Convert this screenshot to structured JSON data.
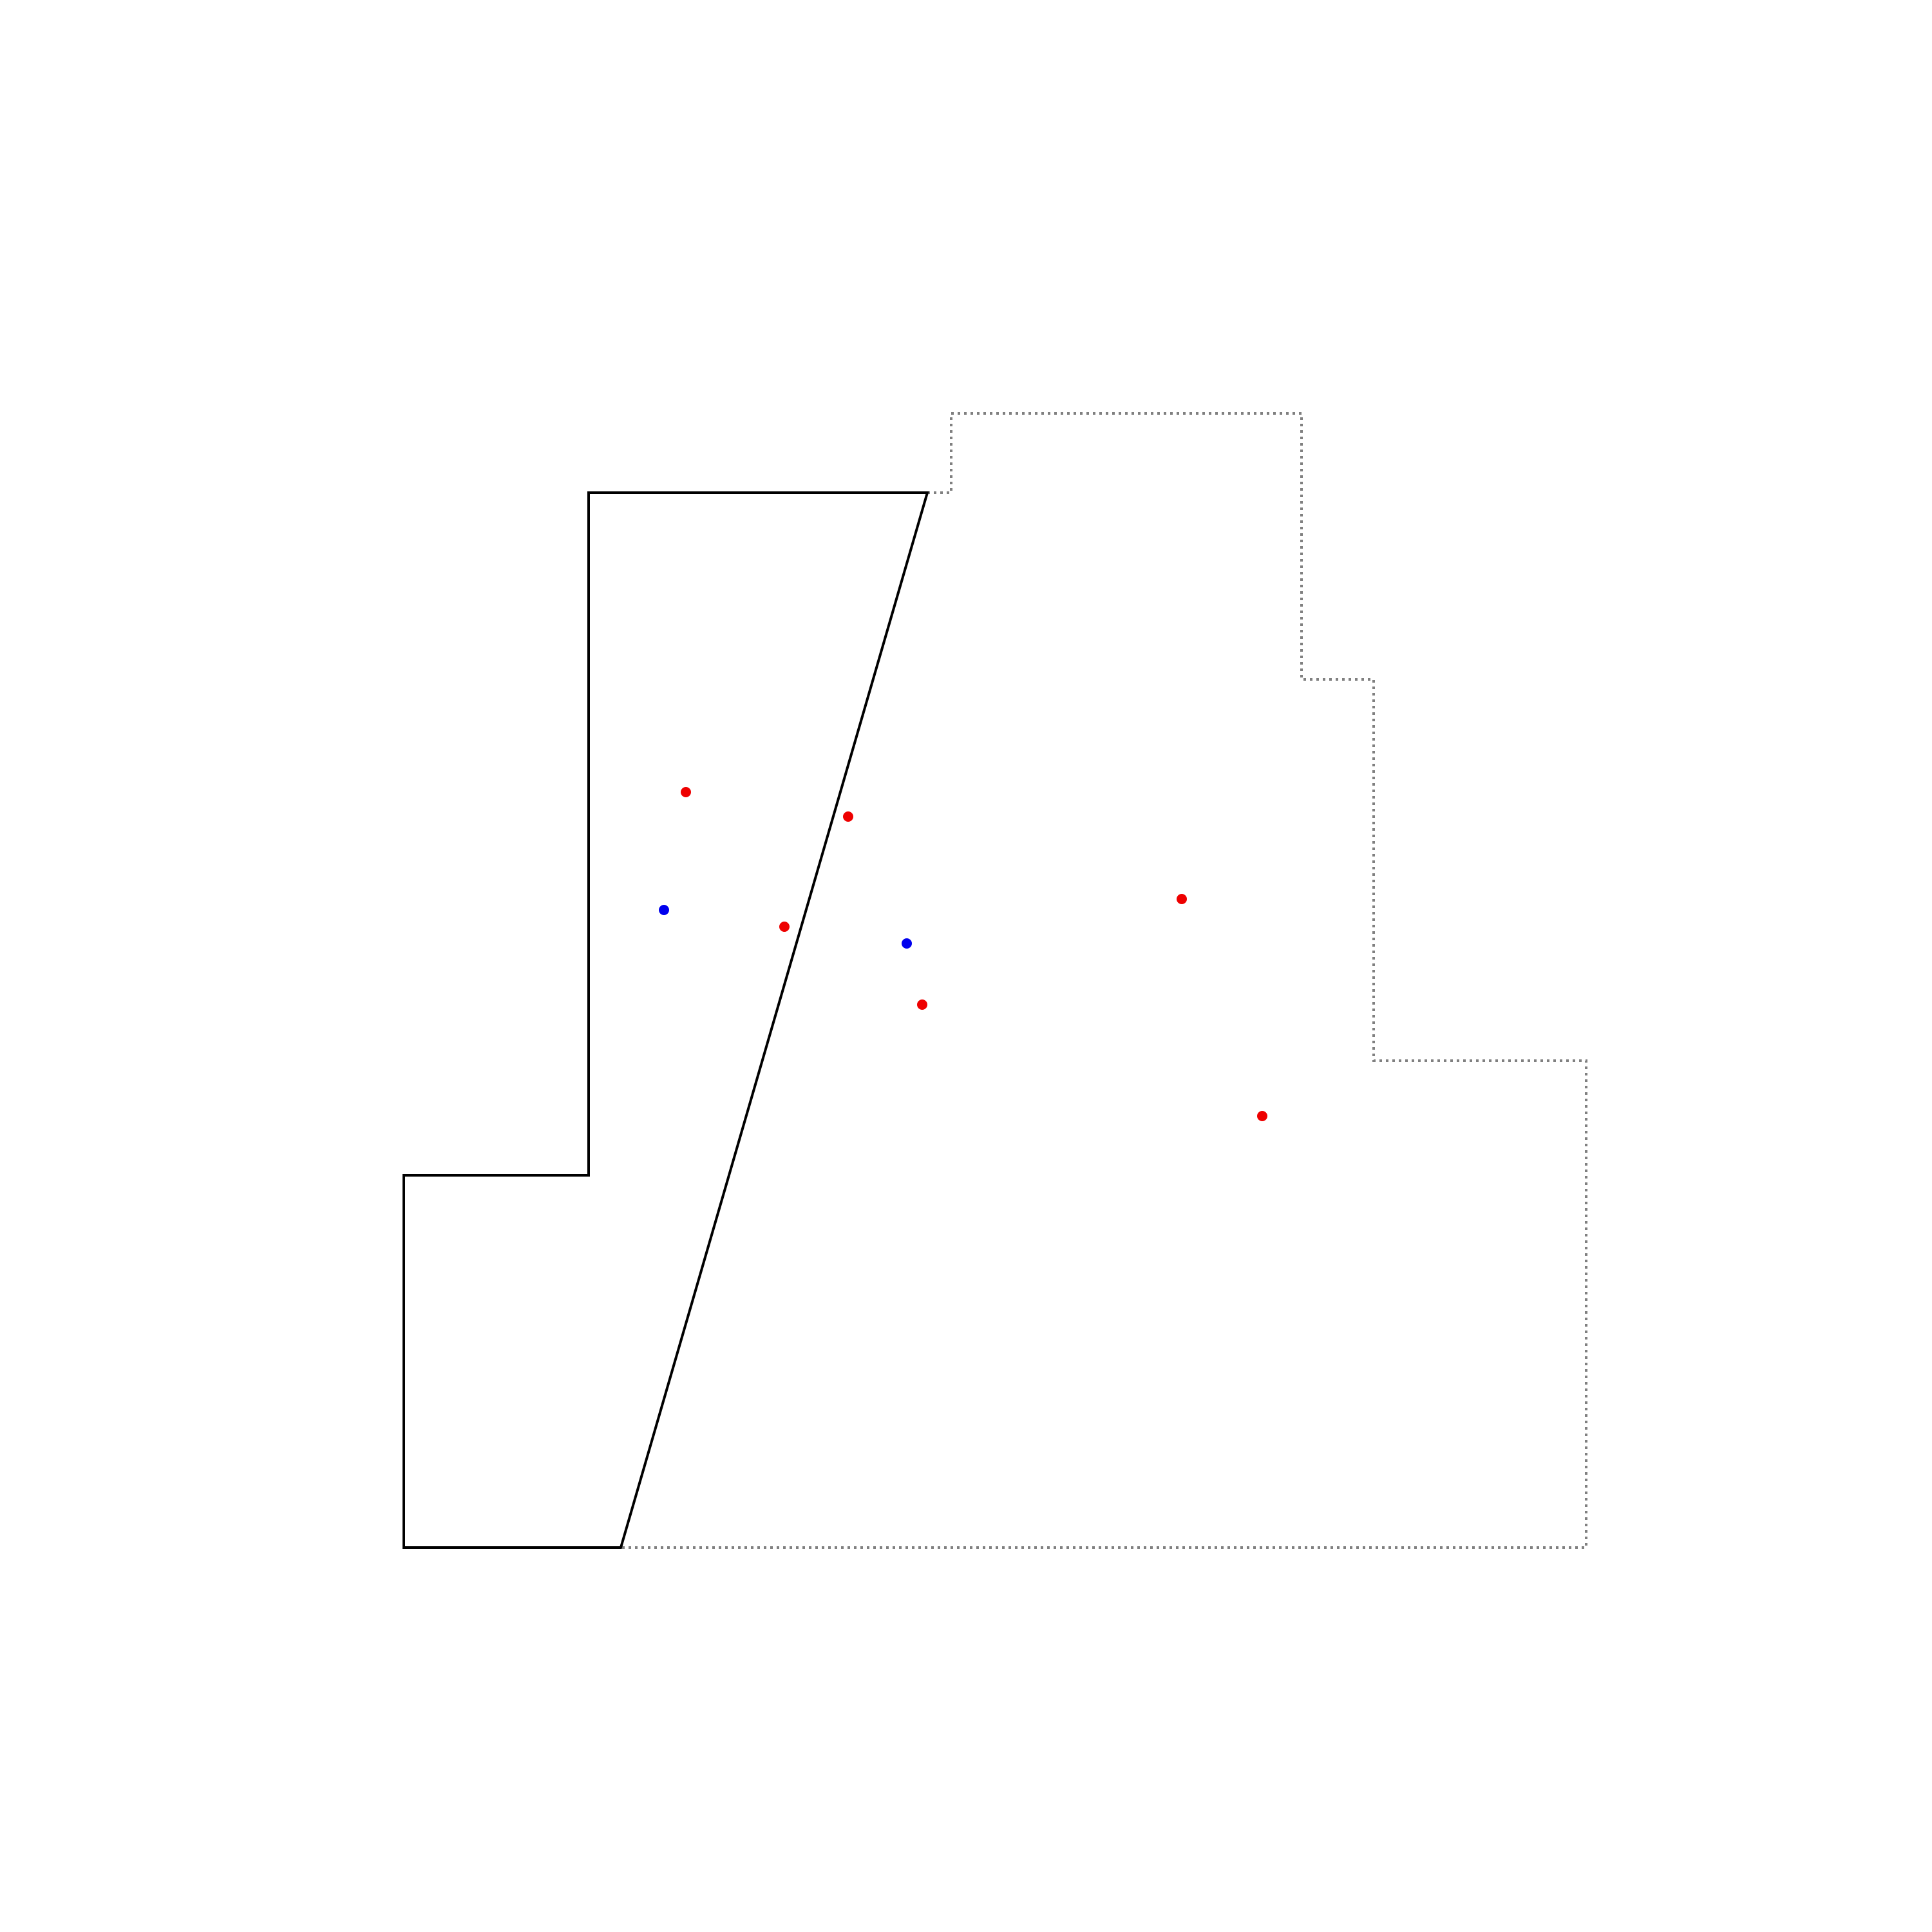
{
  "colors": {
    "background": "#ffffff",
    "solid_outline": "#000000",
    "dotted_outline": "#808080",
    "red_point": "#ee0000",
    "blue_point": "#0000ee"
  },
  "outlines": [
    {
      "name": "solid-polygon",
      "style": "solid",
      "color_key": "solid_outline"
    },
    {
      "name": "dotted-boundary",
      "style": "dotted",
      "color_key": "dotted_outline"
    }
  ],
  "points": [
    {
      "name": "red-point-1",
      "color_key": "red_point"
    },
    {
      "name": "red-point-2",
      "color_key": "red_point"
    },
    {
      "name": "red-point-3",
      "color_key": "red_point"
    },
    {
      "name": "red-point-4",
      "color_key": "red_point"
    },
    {
      "name": "red-point-5",
      "color_key": "red_point"
    },
    {
      "name": "red-point-6",
      "color_key": "red_point"
    },
    {
      "name": "blue-point-1",
      "color_key": "blue_point"
    },
    {
      "name": "blue-point-2",
      "color_key": "blue_point"
    }
  ]
}
